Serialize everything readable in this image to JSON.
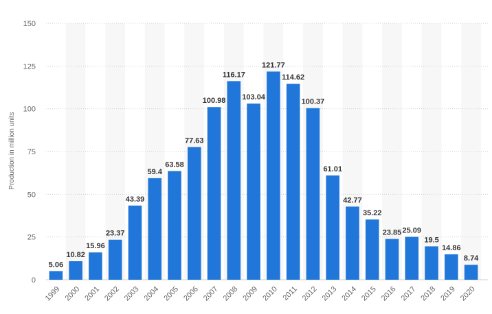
{
  "chart_data": {
    "type": "bar",
    "title": "",
    "xlabel": "",
    "ylabel": "Production in million units",
    "categories": [
      "1999",
      "2000",
      "2001",
      "2002",
      "2003",
      "2004",
      "2005",
      "2006",
      "2007",
      "2008",
      "2009",
      "2010",
      "2011",
      "2012",
      "2013",
      "2014",
      "2015",
      "2016",
      "2017",
      "2018",
      "2019",
      "2020"
    ],
    "values": [
      5.06,
      10.82,
      15.96,
      23.37,
      43.39,
      59.4,
      63.58,
      77.63,
      100.98,
      116.17,
      103.04,
      121.77,
      114.62,
      100.37,
      61.01,
      42.77,
      35.22,
      23.85,
      25.09,
      19.5,
      14.86,
      8.74
    ],
    "data_labels": [
      "5.06",
      "10.82",
      "15.96",
      "23.37",
      "43.39",
      "59.4",
      "63.58",
      "77.63",
      "100.98",
      "116.17",
      "103.04",
      "121.77",
      "114.62",
      "100.37",
      "61.01",
      "42.77",
      "35.22",
      "23.85",
      "25.09",
      "19.5",
      "14.86",
      "8.74"
    ],
    "ylim": [
      0,
      150
    ],
    "yticks": [
      "0",
      "25",
      "50",
      "75",
      "100",
      "125",
      "150"
    ],
    "grid": true,
    "legend": "none",
    "colors": {
      "bar": "#2176d9",
      "band": "#f7f7f7",
      "grid": "#cfcfcf",
      "axis_text": "#666666",
      "label_text": "#333333"
    }
  }
}
